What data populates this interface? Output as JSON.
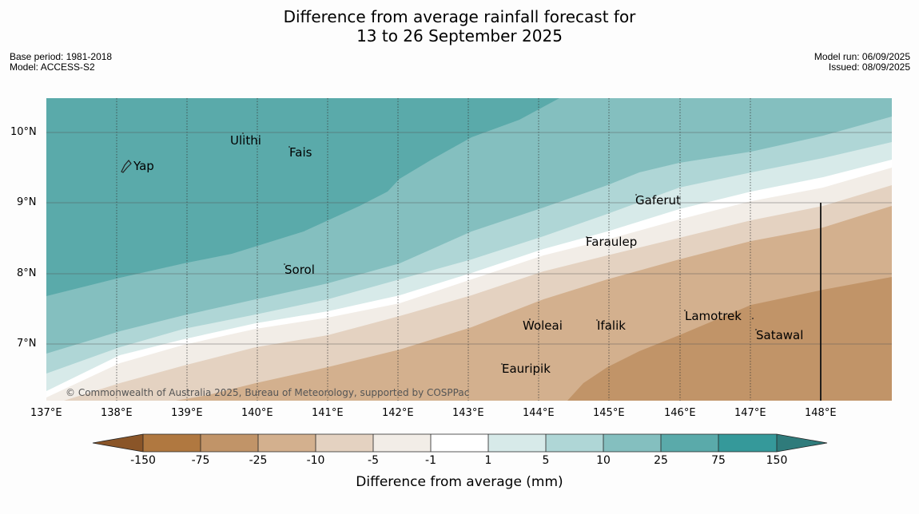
{
  "title_line1": "Difference from average rainfall forecast for",
  "title_line2": "13 to 26 September 2025",
  "base_period": "Base period: 1981-2018",
  "model": "Model: ACCESS-S2",
  "model_run": "Model run: 06/09/2025",
  "issued": "Issued: 08/09/2025",
  "copyright": "© Commonwealth of Australia 2025, Bureau of Meteorology, supported by COSPPac",
  "lon_labels": [
    "137°E",
    "138°E",
    "139°E",
    "140°E",
    "141°E",
    "142°E",
    "143°E",
    "144°E",
    "145°E",
    "146°E",
    "147°E",
    "148°E"
  ],
  "lat_labels": [
    "10°N",
    "9°N",
    "8°N",
    "7°N"
  ],
  "places": [
    "Yap",
    "Ulithi",
    "Fais",
    "Gaferut",
    "Faraulep",
    "Sorol",
    "Woleai",
    "Ifalik",
    "Lamotrek",
    "Satawal",
    "Eauripik"
  ],
  "colorbar": {
    "ticks": [
      "-150",
      "-75",
      "-25",
      "-10",
      "-5",
      "-1",
      "1",
      "5",
      "10",
      "25",
      "75",
      "150"
    ],
    "label": "Difference from average (mm)",
    "colors": [
      "#8a5528",
      "#b07840",
      "#c19468",
      "#d3b08e",
      "#e4d2c1",
      "#f2ede7",
      "#ffffff",
      "#d7eae9",
      "#afd6d6",
      "#84bfbf",
      "#5aaaaa",
      "#35999a",
      "#2f7b7b"
    ]
  }
}
